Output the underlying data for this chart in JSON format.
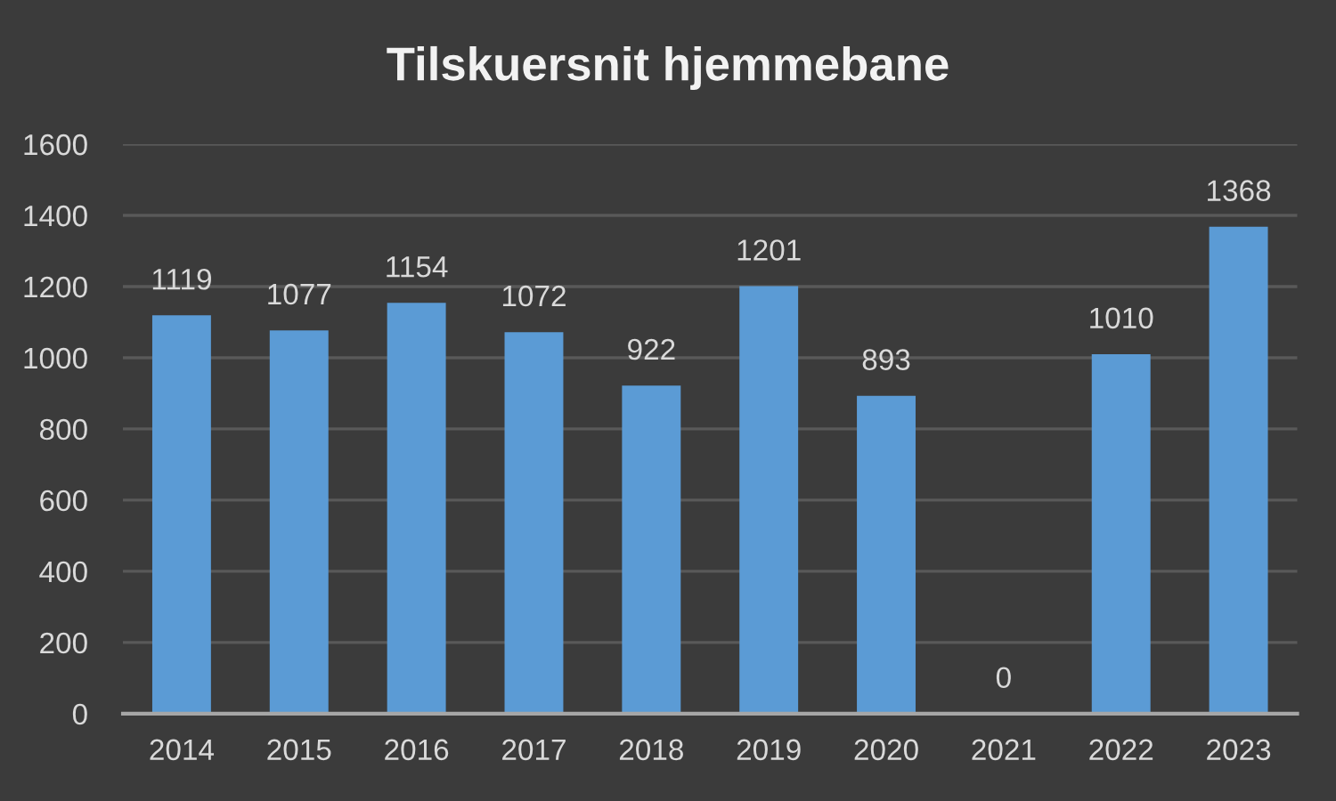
{
  "chart_data": {
    "type": "bar",
    "title": "Tilskuersnit hjemmebane",
    "categories": [
      "2014",
      "2015",
      "2016",
      "2017",
      "2018",
      "2019",
      "2020",
      "2021",
      "2022",
      "2023"
    ],
    "values": [
      1119,
      1077,
      1154,
      1072,
      922,
      1201,
      893,
      0,
      1010,
      1368
    ],
    "color": "#5b9bd5",
    "ylim": [
      0,
      1600
    ],
    "yticks": [
      0,
      200,
      400,
      600,
      800,
      1000,
      1200,
      1400,
      1600
    ],
    "grid": "y",
    "data_labels": true
  }
}
